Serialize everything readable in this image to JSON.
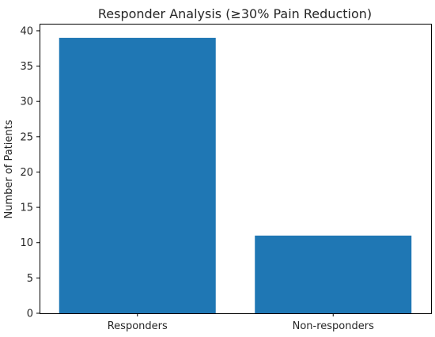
{
  "chart_data": {
    "type": "bar",
    "title": "Responder Analysis (≥30% Pain Reduction)",
    "xlabel": "",
    "ylabel": "Number of Patients",
    "categories": [
      "Responders",
      "Non-responders"
    ],
    "values": [
      39,
      11
    ],
    "ylim": [
      0,
      41
    ],
    "yticks": [
      0,
      5,
      10,
      15,
      20,
      25,
      30,
      35,
      40
    ],
    "bar_color": "#1f77b4",
    "grid": false,
    "legend": "none"
  }
}
